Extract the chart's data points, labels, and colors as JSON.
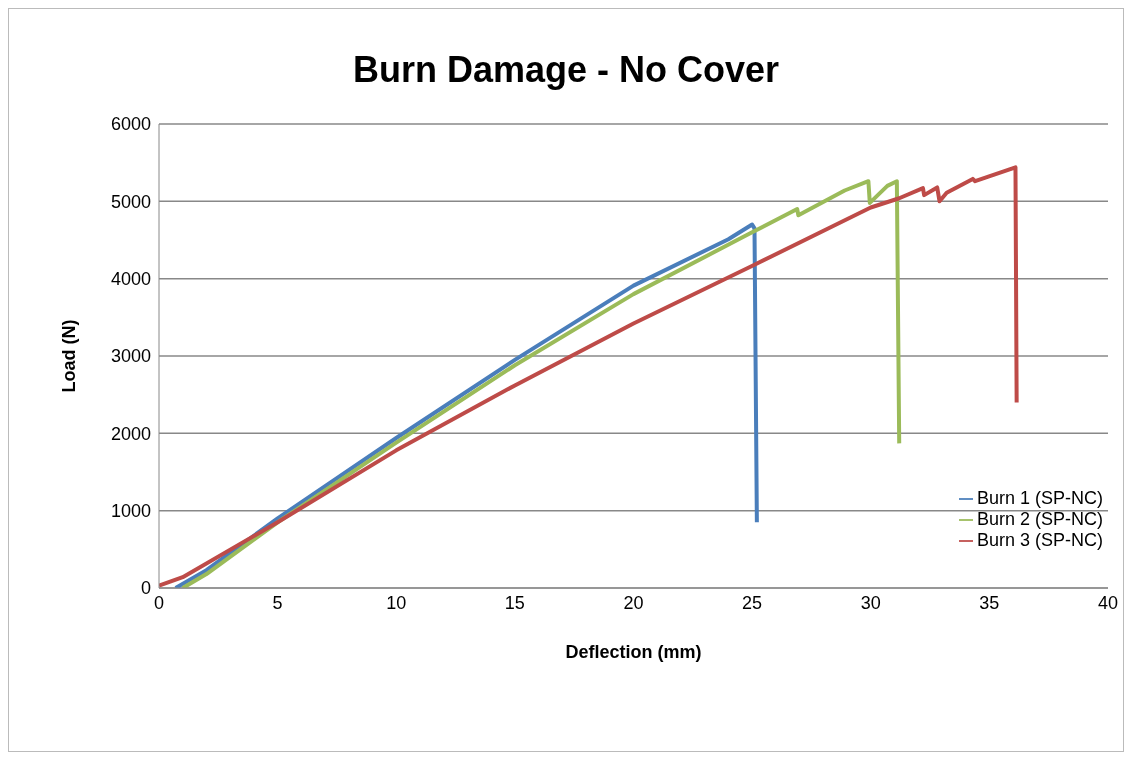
{
  "chart_data": {
    "type": "line",
    "title": "Burn Damage - No Cover",
    "xlabel": "Deflection (mm)",
    "ylabel": "Load (N)",
    "xlim": [
      0,
      40
    ],
    "xticks": [
      0,
      5,
      10,
      15,
      20,
      25,
      30,
      35,
      40
    ],
    "ylim": [
      0,
      6000
    ],
    "yticks": [
      0,
      1000,
      2000,
      3000,
      4000,
      5000,
      6000
    ],
    "grid": "y",
    "legend": "right",
    "marker": "none",
    "line_style": "solid",
    "series": [
      {
        "name": "Burn 1 (SP-NC)",
        "color": "#4a7ebb",
        "x": [
          0.7,
          2,
          5,
          10,
          15,
          20,
          24,
          25,
          25.1,
          25.2
        ],
        "values": [
          0,
          230,
          900,
          1940,
          2950,
          3910,
          4510,
          4700,
          4650,
          850
        ]
      },
      {
        "name": "Burn 2 (SP-NC)",
        "color": "#9bbb59",
        "x": [
          1,
          2,
          5,
          10,
          15,
          20,
          25,
          26.9,
          26.95,
          28.9,
          29.9,
          29.96,
          30.7,
          31.1,
          31.2
        ],
        "values": [
          0,
          180,
          850,
          1880,
          2880,
          3800,
          4600,
          4900,
          4820,
          5140,
          5260,
          4980,
          5200,
          5260,
          1870
        ]
      },
      {
        "name": "Burn 3 (SP-NC)",
        "color": "#be4b48",
        "x": [
          0,
          1,
          5,
          10,
          15,
          20,
          25.1,
          30,
          31.2,
          32.2,
          32.25,
          32.8,
          32.9,
          33.2,
          34.3,
          34.4,
          36.1,
          36.15
        ],
        "values": [
          30,
          140,
          850,
          1780,
          2620,
          3420,
          4180,
          4920,
          5040,
          5170,
          5080,
          5180,
          5000,
          5110,
          5290,
          5260,
          5440,
          2400
        ]
      }
    ]
  }
}
